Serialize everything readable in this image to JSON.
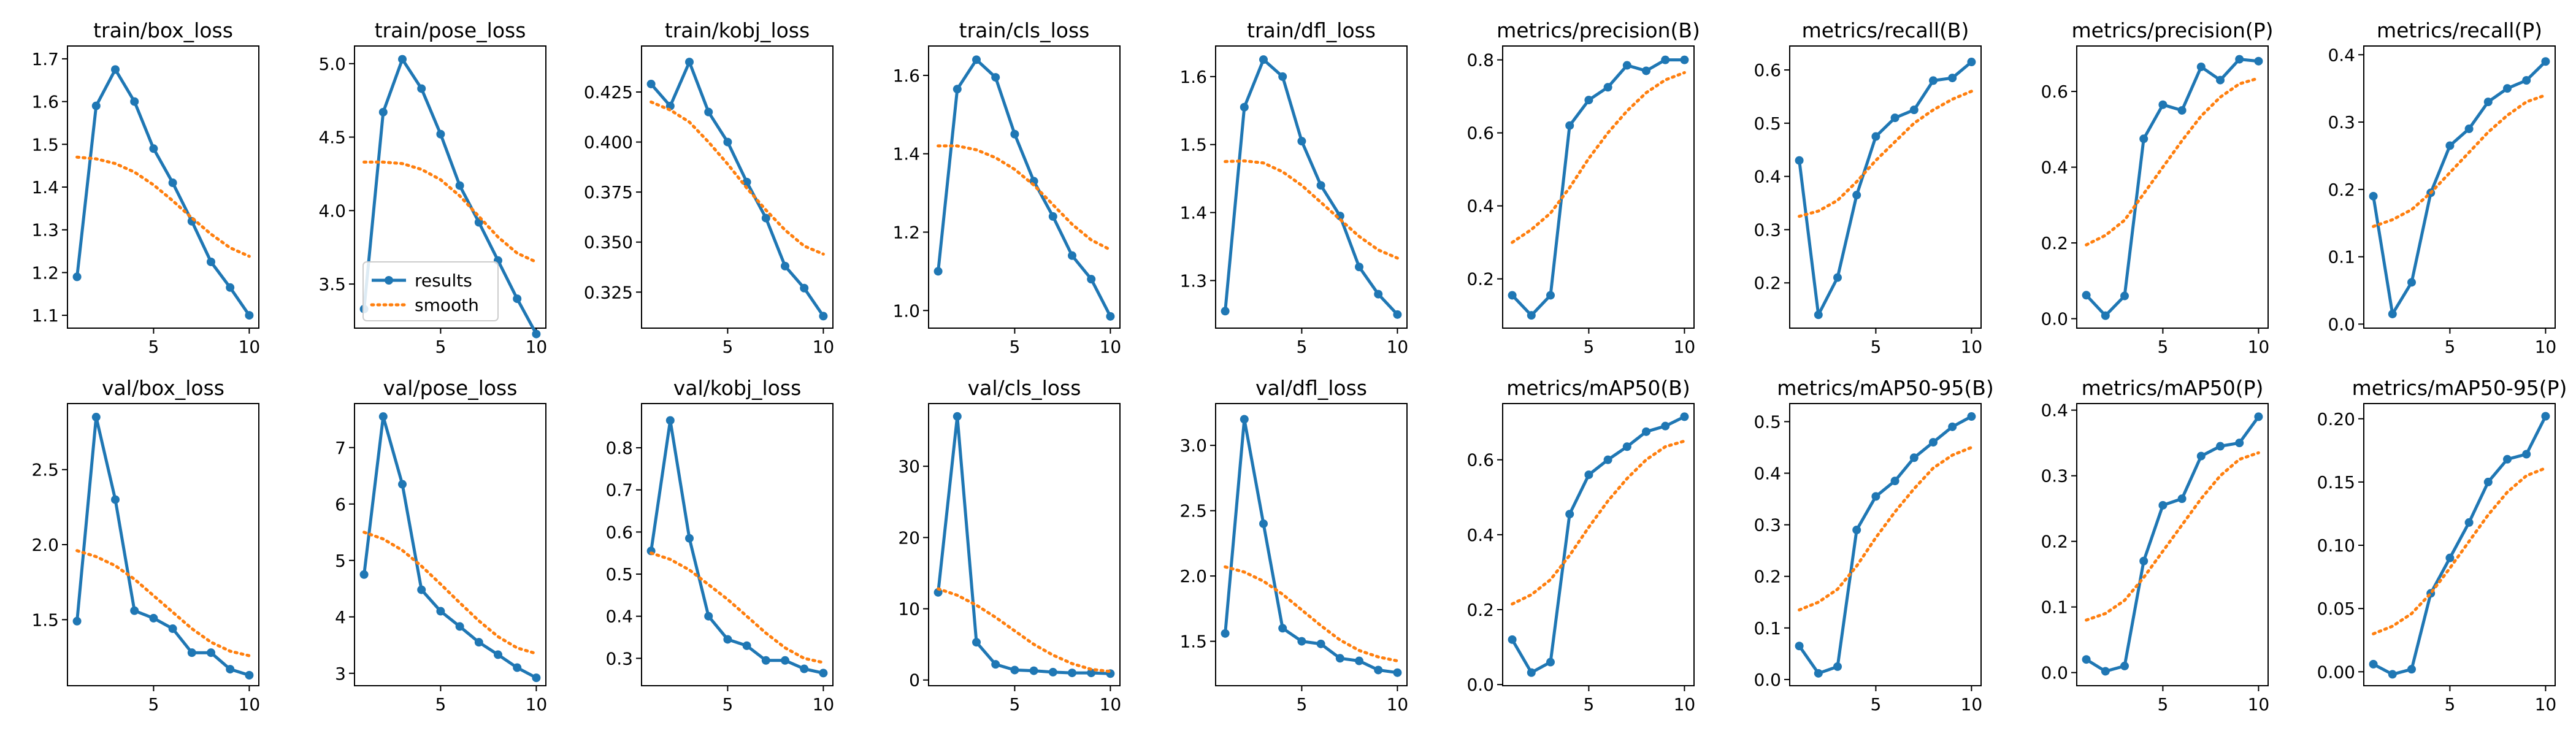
{
  "colors": {
    "results": "#1f77b4",
    "smooth": "#ff7f0e",
    "axes": "#000000",
    "background": "#ffffff"
  },
  "legend": {
    "location": "lower-left",
    "panel": 1
  },
  "chart_data": [
    {
      "type": "line",
      "title": "train/box_loss",
      "xlim": [
        0.5,
        10.5
      ],
      "ylim": [
        1.07,
        1.73
      ],
      "xticks": [
        5,
        10
      ],
      "yticks": [
        1.1,
        1.2,
        1.3,
        1.4,
        1.5,
        1.6,
        1.7
      ],
      "ytick_labels": [
        "1.1",
        "1.2",
        "1.3",
        "1.4",
        "1.5",
        "1.6",
        "1.7"
      ],
      "x": [
        1,
        2,
        3,
        4,
        5,
        6,
        7,
        8,
        9,
        10
      ],
      "series": [
        {
          "name": "results",
          "values": [
            1.19,
            1.59,
            1.675,
            1.6,
            1.49,
            1.41,
            1.32,
            1.225,
            1.165,
            1.1
          ]
        },
        {
          "name": "smooth",
          "values": [
            1.47,
            1.466,
            1.455,
            1.435,
            1.405,
            1.368,
            1.328,
            1.29,
            1.258,
            1.238
          ]
        }
      ]
    },
    {
      "type": "line",
      "title": "train/pose_loss",
      "xlim": [
        0.5,
        10.5
      ],
      "ylim": [
        3.2,
        5.12
      ],
      "xticks": [
        5,
        10
      ],
      "yticks": [
        3.5,
        4.0,
        4.5,
        5.0
      ],
      "ytick_labels": [
        "3.5",
        "4.0",
        "4.5",
        "5.0"
      ],
      "x": [
        1,
        2,
        3,
        4,
        5,
        6,
        7,
        8,
        9,
        10
      ],
      "series": [
        {
          "name": "results",
          "values": [
            3.33,
            4.67,
            5.03,
            4.83,
            4.52,
            4.17,
            3.92,
            3.66,
            3.4,
            3.16
          ]
        },
        {
          "name": "smooth",
          "values": [
            4.33,
            4.33,
            4.32,
            4.28,
            4.21,
            4.1,
            3.96,
            3.82,
            3.71,
            3.65
          ]
        }
      ]
    },
    {
      "type": "line",
      "title": "train/kobj_loss",
      "xlim": [
        0.5,
        10.5
      ],
      "ylim": [
        0.307,
        0.448
      ],
      "xticks": [
        5,
        10
      ],
      "yticks": [
        0.325,
        0.35,
        0.375,
        0.4,
        0.425
      ],
      "ytick_labels": [
        "0.325",
        "0.350",
        "0.375",
        "0.400",
        "0.425"
      ],
      "x": [
        1,
        2,
        3,
        4,
        5,
        6,
        7,
        8,
        9,
        10
      ],
      "series": [
        {
          "name": "results",
          "values": [
            0.429,
            0.418,
            0.44,
            0.415,
            0.4,
            0.38,
            0.362,
            0.338,
            0.327,
            0.313
          ]
        },
        {
          "name": "smooth",
          "values": [
            0.42,
            0.416,
            0.41,
            0.4,
            0.389,
            0.377,
            0.366,
            0.356,
            0.348,
            0.344
          ]
        }
      ]
    },
    {
      "type": "line",
      "title": "train/cls_loss",
      "xlim": [
        0.5,
        10.5
      ],
      "ylim": [
        0.955,
        1.675
      ],
      "xticks": [
        5,
        10
      ],
      "yticks": [
        1.0,
        1.2,
        1.4,
        1.6
      ],
      "ytick_labels": [
        "1.0",
        "1.2",
        "1.4",
        "1.6"
      ],
      "x": [
        1,
        2,
        3,
        4,
        5,
        6,
        7,
        8,
        9,
        10
      ],
      "series": [
        {
          "name": "results",
          "values": [
            1.1,
            1.565,
            1.64,
            1.595,
            1.45,
            1.33,
            1.24,
            1.14,
            1.08,
            0.985
          ]
        },
        {
          "name": "smooth",
          "values": [
            1.42,
            1.42,
            1.41,
            1.39,
            1.36,
            1.32,
            1.27,
            1.22,
            1.18,
            1.155
          ]
        }
      ]
    },
    {
      "type": "line",
      "title": "train/dfl_loss",
      "xlim": [
        0.5,
        10.5
      ],
      "ylim": [
        1.23,
        1.645
      ],
      "xticks": [
        5,
        10
      ],
      "yticks": [
        1.3,
        1.4,
        1.5,
        1.6
      ],
      "ytick_labels": [
        "1.3",
        "1.4",
        "1.5",
        "1.6"
      ],
      "x": [
        1,
        2,
        3,
        4,
        5,
        6,
        7,
        8,
        9,
        10
      ],
      "series": [
        {
          "name": "results",
          "values": [
            1.255,
            1.555,
            1.625,
            1.6,
            1.505,
            1.44,
            1.395,
            1.32,
            1.28,
            1.25
          ]
        },
        {
          "name": "smooth",
          "values": [
            1.475,
            1.476,
            1.473,
            1.46,
            1.44,
            1.415,
            1.39,
            1.365,
            1.345,
            1.333
          ]
        }
      ]
    },
    {
      "type": "line",
      "title": "metrics/precision(B)",
      "xlim": [
        0.5,
        10.5
      ],
      "ylim": [
        0.065,
        0.838
      ],
      "xticks": [
        5,
        10
      ],
      "yticks": [
        0.2,
        0.4,
        0.6,
        0.8
      ],
      "ytick_labels": [
        "0.2",
        "0.4",
        "0.6",
        "0.8"
      ],
      "x": [
        1,
        2,
        3,
        4,
        5,
        6,
        7,
        8,
        9,
        10
      ],
      "series": [
        {
          "name": "results",
          "values": [
            0.155,
            0.1,
            0.155,
            0.62,
            0.69,
            0.725,
            0.785,
            0.77,
            0.8,
            0.8
          ]
        },
        {
          "name": "smooth",
          "values": [
            0.3,
            0.335,
            0.38,
            0.45,
            0.53,
            0.6,
            0.66,
            0.71,
            0.745,
            0.765
          ]
        }
      ]
    },
    {
      "type": "line",
      "title": "metrics/recall(B)",
      "xlim": [
        0.5,
        10.5
      ],
      "ylim": [
        0.115,
        0.645
      ],
      "xticks": [
        5,
        10
      ],
      "yticks": [
        0.2,
        0.3,
        0.4,
        0.5,
        0.6
      ],
      "ytick_labels": [
        "0.2",
        "0.3",
        "0.4",
        "0.5",
        "0.6"
      ],
      "x": [
        1,
        2,
        3,
        4,
        5,
        6,
        7,
        8,
        9,
        10
      ],
      "series": [
        {
          "name": "results",
          "values": [
            0.43,
            0.14,
            0.21,
            0.365,
            0.475,
            0.51,
            0.525,
            0.58,
            0.585,
            0.615
          ]
        },
        {
          "name": "smooth",
          "values": [
            0.325,
            0.335,
            0.355,
            0.39,
            0.43,
            0.465,
            0.5,
            0.525,
            0.545,
            0.56
          ]
        }
      ]
    },
    {
      "type": "line",
      "title": "metrics/precision(P)",
      "xlim": [
        0.5,
        10.5
      ],
      "ylim": [
        -0.025,
        0.72
      ],
      "xticks": [
        5,
        10
      ],
      "yticks": [
        0.0,
        0.2,
        0.4,
        0.6
      ],
      "ytick_labels": [
        "0.0",
        "0.2",
        "0.4",
        "0.6"
      ],
      "x": [
        1,
        2,
        3,
        4,
        5,
        6,
        7,
        8,
        9,
        10
      ],
      "series": [
        {
          "name": "results",
          "values": [
            0.062,
            0.008,
            0.06,
            0.475,
            0.565,
            0.55,
            0.665,
            0.63,
            0.685,
            0.68
          ]
        },
        {
          "name": "smooth",
          "values": [
            0.195,
            0.22,
            0.26,
            0.33,
            0.4,
            0.47,
            0.535,
            0.585,
            0.62,
            0.635
          ]
        }
      ]
    },
    {
      "type": "line",
      "title": "metrics/recall(P)",
      "xlim": [
        0.5,
        10.5
      ],
      "ylim": [
        -0.006,
        0.413
      ],
      "xticks": [
        5,
        10
      ],
      "yticks": [
        0.0,
        0.1,
        0.2,
        0.3,
        0.4
      ],
      "ytick_labels": [
        "0.0",
        "0.1",
        "0.2",
        "0.3",
        "0.4"
      ],
      "x": [
        1,
        2,
        3,
        4,
        5,
        6,
        7,
        8,
        9,
        10
      ],
      "series": [
        {
          "name": "results",
          "values": [
            0.19,
            0.015,
            0.062,
            0.195,
            0.265,
            0.29,
            0.33,
            0.35,
            0.362,
            0.39
          ]
        },
        {
          "name": "smooth",
          "values": [
            0.145,
            0.155,
            0.17,
            0.195,
            0.225,
            0.255,
            0.285,
            0.31,
            0.33,
            0.34
          ]
        }
      ]
    },
    {
      "type": "line",
      "title": "val/box_loss",
      "xlim": [
        0.5,
        10.5
      ],
      "ylim": [
        1.06,
        2.94
      ],
      "xticks": [
        5,
        10
      ],
      "yticks": [
        1.5,
        2.0,
        2.5
      ],
      "ytick_labels": [
        "1.5",
        "2.0",
        "2.5"
      ],
      "x": [
        1,
        2,
        3,
        4,
        5,
        6,
        7,
        8,
        9,
        10
      ],
      "series": [
        {
          "name": "results",
          "values": [
            1.49,
            2.85,
            2.3,
            1.56,
            1.51,
            1.44,
            1.28,
            1.28,
            1.17,
            1.13
          ]
        },
        {
          "name": "smooth",
          "values": [
            1.96,
            1.92,
            1.86,
            1.77,
            1.66,
            1.55,
            1.44,
            1.35,
            1.29,
            1.26
          ]
        }
      ]
    },
    {
      "type": "line",
      "title": "val/pose_loss",
      "xlim": [
        0.5,
        10.5
      ],
      "ylim": [
        2.78,
        7.78
      ],
      "xticks": [
        5,
        10
      ],
      "yticks": [
        3,
        4,
        5,
        6,
        7
      ],
      "ytick_labels": [
        "3",
        "4",
        "5",
        "6",
        "7"
      ],
      "x": [
        1,
        2,
        3,
        4,
        5,
        6,
        7,
        8,
        9,
        10
      ],
      "series": [
        {
          "name": "results",
          "values": [
            4.75,
            7.55,
            6.35,
            4.48,
            4.1,
            3.83,
            3.55,
            3.33,
            3.1,
            2.92
          ]
        },
        {
          "name": "smooth",
          "values": [
            5.5,
            5.38,
            5.18,
            4.9,
            4.58,
            4.25,
            3.93,
            3.65,
            3.45,
            3.35
          ]
        }
      ]
    },
    {
      "type": "line",
      "title": "val/kobj_loss",
      "xlim": [
        0.5,
        10.5
      ],
      "ylim": [
        0.235,
        0.905
      ],
      "xticks": [
        5,
        10
      ],
      "yticks": [
        0.3,
        0.4,
        0.5,
        0.6,
        0.7,
        0.8
      ],
      "ytick_labels": [
        "0.3",
        "0.4",
        "0.5",
        "0.6",
        "0.7",
        "0.8"
      ],
      "x": [
        1,
        2,
        3,
        4,
        5,
        6,
        7,
        8,
        9,
        10
      ],
      "series": [
        {
          "name": "results",
          "values": [
            0.555,
            0.865,
            0.585,
            0.4,
            0.345,
            0.33,
            0.295,
            0.295,
            0.275,
            0.265
          ]
        },
        {
          "name": "smooth",
          "values": [
            0.55,
            0.535,
            0.51,
            0.475,
            0.44,
            0.4,
            0.36,
            0.325,
            0.3,
            0.29
          ]
        }
      ]
    },
    {
      "type": "line",
      "title": "val/cls_loss",
      "xlim": [
        0.5,
        10.5
      ],
      "ylim": [
        -0.8,
        38.8
      ],
      "xticks": [
        5,
        10
      ],
      "yticks": [
        0,
        10,
        20,
        30
      ],
      "ytick_labels": [
        "0",
        "10",
        "20",
        "30"
      ],
      "x": [
        1,
        2,
        3,
        4,
        5,
        6,
        7,
        8,
        9,
        10
      ],
      "series": [
        {
          "name": "results",
          "values": [
            12.3,
            37.0,
            5.3,
            2.2,
            1.4,
            1.3,
            1.1,
            1.0,
            1.0,
            0.9
          ]
        },
        {
          "name": "smooth",
          "values": [
            12.8,
            11.9,
            10.5,
            8.8,
            6.9,
            5.0,
            3.5,
            2.3,
            1.5,
            1.2
          ]
        }
      ]
    },
    {
      "type": "line",
      "title": "val/dfl_loss",
      "xlim": [
        0.5,
        10.5
      ],
      "ylim": [
        1.16,
        3.32
      ],
      "xticks": [
        5,
        10
      ],
      "yticks": [
        1.5,
        2.0,
        2.5,
        3.0
      ],
      "ytick_labels": [
        "1.5",
        "2.0",
        "2.5",
        "3.0"
      ],
      "x": [
        1,
        2,
        3,
        4,
        5,
        6,
        7,
        8,
        9,
        10
      ],
      "series": [
        {
          "name": "results",
          "values": [
            1.56,
            3.2,
            2.4,
            1.6,
            1.5,
            1.48,
            1.37,
            1.35,
            1.28,
            1.26
          ]
        },
        {
          "name": "smooth",
          "values": [
            2.07,
            2.03,
            1.96,
            1.86,
            1.74,
            1.62,
            1.51,
            1.43,
            1.38,
            1.35
          ]
        }
      ]
    },
    {
      "type": "line",
      "title": "metrics/mAP50(B)",
      "xlim": [
        0.5,
        10.5
      ],
      "ylim": [
        -0.003,
        0.75
      ],
      "xticks": [
        5,
        10
      ],
      "yticks": [
        0.0,
        0.2,
        0.4,
        0.6
      ],
      "ytick_labels": [
        "0.0",
        "0.2",
        "0.4",
        "0.6"
      ],
      "x": [
        1,
        2,
        3,
        4,
        5,
        6,
        7,
        8,
        9,
        10
      ],
      "series": [
        {
          "name": "results",
          "values": [
            0.12,
            0.032,
            0.06,
            0.455,
            0.56,
            0.6,
            0.635,
            0.675,
            0.69,
            0.715
          ]
        },
        {
          "name": "smooth",
          "values": [
            0.215,
            0.24,
            0.28,
            0.345,
            0.42,
            0.49,
            0.55,
            0.6,
            0.635,
            0.65
          ]
        }
      ]
    },
    {
      "type": "line",
      "title": "metrics/mAP50-95(B)",
      "xlim": [
        0.5,
        10.5
      ],
      "ylim": [
        -0.012,
        0.535
      ],
      "xticks": [
        5,
        10
      ],
      "yticks": [
        0.0,
        0.1,
        0.2,
        0.3,
        0.4,
        0.5
      ],
      "ytick_labels": [
        "0.0",
        "0.1",
        "0.2",
        "0.3",
        "0.4",
        "0.5"
      ],
      "x": [
        1,
        2,
        3,
        4,
        5,
        6,
        7,
        8,
        9,
        10
      ],
      "series": [
        {
          "name": "results",
          "values": [
            0.065,
            0.012,
            0.025,
            0.29,
            0.355,
            0.385,
            0.43,
            0.46,
            0.49,
            0.51
          ]
        },
        {
          "name": "smooth",
          "values": [
            0.135,
            0.15,
            0.175,
            0.22,
            0.275,
            0.325,
            0.37,
            0.41,
            0.435,
            0.45
          ]
        }
      ]
    },
    {
      "type": "line",
      "title": "metrics/mAP50(P)",
      "xlim": [
        0.5,
        10.5
      ],
      "ylim": [
        -0.02,
        0.41
      ],
      "xticks": [
        5,
        10
      ],
      "yticks": [
        0.0,
        0.1,
        0.2,
        0.3,
        0.4
      ],
      "ytick_labels": [
        "0.0",
        "0.1",
        "0.2",
        "0.3",
        "0.4"
      ],
      "x": [
        1,
        2,
        3,
        4,
        5,
        6,
        7,
        8,
        9,
        10
      ],
      "series": [
        {
          "name": "results",
          "values": [
            0.02,
            0.002,
            0.01,
            0.17,
            0.255,
            0.265,
            0.33,
            0.345,
            0.35,
            0.39
          ]
        },
        {
          "name": "smooth",
          "values": [
            0.08,
            0.09,
            0.11,
            0.145,
            0.185,
            0.225,
            0.265,
            0.3,
            0.325,
            0.335
          ]
        }
      ]
    },
    {
      "type": "line",
      "title": "metrics/mAP50-95(P)",
      "xlim": [
        0.5,
        10.5
      ],
      "ylim": [
        -0.011,
        0.212
      ],
      "xticks": [
        5,
        10
      ],
      "yticks": [
        0.0,
        0.05,
        0.1,
        0.15,
        0.2
      ],
      "ytick_labels": [
        "0.00",
        "0.05",
        "0.10",
        "0.15",
        "0.20"
      ],
      "x": [
        1,
        2,
        3,
        4,
        5,
        6,
        7,
        8,
        9,
        10
      ],
      "series": [
        {
          "name": "results",
          "values": [
            0.006,
            -0.002,
            0.002,
            0.062,
            0.09,
            0.118,
            0.15,
            0.168,
            0.172,
            0.202
          ]
        },
        {
          "name": "smooth",
          "values": [
            0.03,
            0.036,
            0.046,
            0.062,
            0.082,
            0.103,
            0.124,
            0.142,
            0.155,
            0.161
          ]
        }
      ]
    }
  ]
}
